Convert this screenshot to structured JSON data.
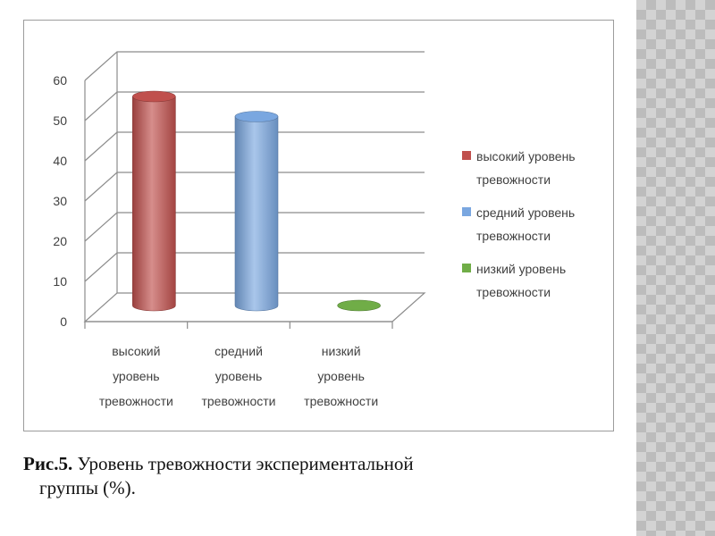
{
  "chart_data": {
    "type": "bar",
    "style": "3d-cylinder",
    "categories": [
      [
        "высокий",
        "уровень",
        "тревожности"
      ],
      [
        "средний",
        "уровень",
        "тревожности"
      ],
      [
        "низкий",
        "уровень",
        "тревожности"
      ]
    ],
    "series": [
      {
        "name": [
          "высокий уровень",
          "тревожности"
        ],
        "color": "#c0504d",
        "values": [
          52,
          null,
          null
        ]
      },
      {
        "name": [
          "средний уровень",
          "тревожности"
        ],
        "color": "#7aa7e0",
        "values": [
          null,
          47,
          null
        ]
      },
      {
        "name": [
          "низкий уровень",
          "тревожности"
        ],
        "color": "#70ad47",
        "values": [
          null,
          null,
          0
        ]
      }
    ],
    "ylim": [
      0,
      60
    ],
    "yticks": [
      "0",
      "10",
      "20",
      "30",
      "40",
      "50",
      "60"
    ],
    "grid": true,
    "legend_position": "right"
  },
  "caption": {
    "prefix": "Рис.5.",
    "line1": " Уровень  тревожности экспериментальной",
    "line2": "группы (%)."
  },
  "colors": {
    "side_strip": "#d3d3d3",
    "grid": "#8c8c8c"
  }
}
